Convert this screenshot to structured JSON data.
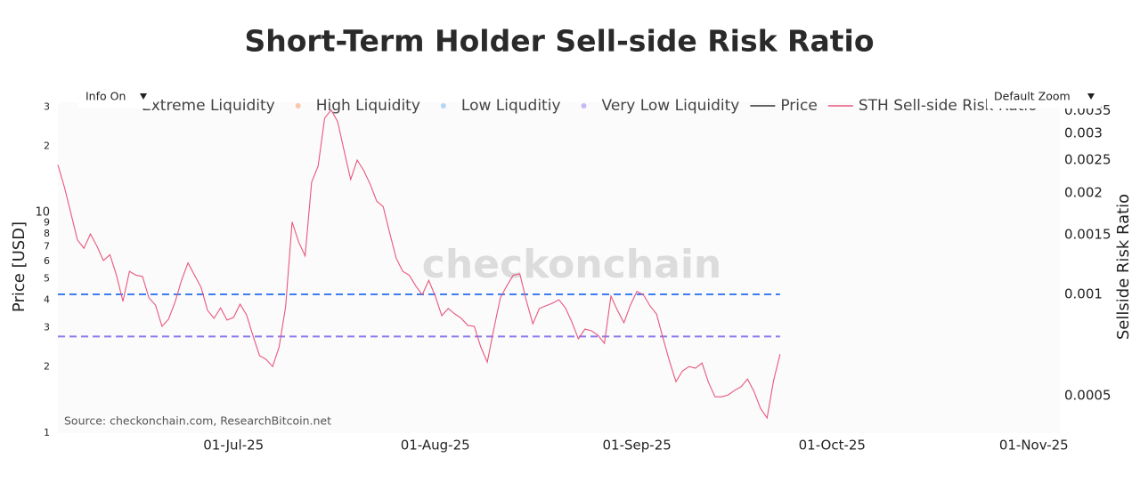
{
  "chart_data": {
    "type": "line",
    "title": "Short-Term Holder Sell-side Risk Ratio",
    "y_label": "Price [USD]",
    "y2_label": "Sellside Risk Ratio",
    "watermark": "checkonchain",
    "source": "Source: checkonchain.com, ResearchBitcoin.net",
    "controls": {
      "info": "Info On",
      "zoom": "Default Zoom"
    },
    "ylog": true,
    "y2log": true,
    "grid": false,
    "xlim": [
      "2025-06-04",
      "2025-11-05"
    ],
    "xticks": [
      {
        "value": "2025-07-01",
        "label": "01-Jul-25"
      },
      {
        "value": "2025-08-01",
        "label": "01-Aug-25"
      },
      {
        "value": "2025-09-01",
        "label": "01-Sep-25"
      },
      {
        "value": "2025-10-01",
        "label": "01-Oct-25"
      },
      {
        "value": "2025-11-01",
        "label": "01-Nov-25"
      }
    ],
    "ylim": [
      1,
      31.6
    ],
    "yticks": [
      1,
      2,
      3,
      4,
      5,
      6,
      7,
      8,
      9,
      10,
      {
        "value": 20,
        "label": "2"
      },
      {
        "value": 30,
        "label": "3"
      }
    ],
    "y2lim": [
      0.000388,
      0.00371
    ],
    "y2ticks": [
      0.0005,
      0.001,
      0.0015,
      0.002,
      0.0025,
      0.003,
      0.0035
    ],
    "legend": [
      {
        "name": "Extreme Liquidity",
        "color": "#f4a08c",
        "symbol": "dot"
      },
      {
        "name": "High Liquidity",
        "color": "#f9c8a9",
        "symbol": "dot"
      },
      {
        "name": "Low Liquditiy",
        "color": "#b7d4f7",
        "symbol": "dot"
      },
      {
        "name": "Very Low Liquidity",
        "color": "#c8b9f2",
        "symbol": "dot"
      },
      {
        "name": "Price",
        "color": "#333333",
        "symbol": "line"
      }
    ],
    "levels": [
      {
        "value": 0.001,
        "color": "#3d7df2"
      },
      {
        "value": 0.00075,
        "color": "#8c78f0"
      }
    ],
    "x": [
      "2025-06-04",
      "2025-06-05",
      "2025-06-06",
      "2025-06-07",
      "2025-06-08",
      "2025-06-09",
      "2025-06-10",
      "2025-06-11",
      "2025-06-12",
      "2025-06-13",
      "2025-06-14",
      "2025-06-15",
      "2025-06-16",
      "2025-06-17",
      "2025-06-18",
      "2025-06-19",
      "2025-06-20",
      "2025-06-21",
      "2025-06-22",
      "2025-06-23",
      "2025-06-24",
      "2025-06-25",
      "2025-06-26",
      "2025-06-27",
      "2025-06-28",
      "2025-06-29",
      "2025-06-30",
      "2025-07-01",
      "2025-07-02",
      "2025-07-03",
      "2025-07-04",
      "2025-07-05",
      "2025-07-06",
      "2025-07-07",
      "2025-07-08",
      "2025-07-09",
      "2025-07-10",
      "2025-07-11",
      "2025-07-12",
      "2025-07-13",
      "2025-07-14",
      "2025-07-15",
      "2025-07-16",
      "2025-07-17",
      "2025-07-18",
      "2025-07-19",
      "2025-07-20",
      "2025-07-21",
      "2025-07-22",
      "2025-07-23",
      "2025-07-24",
      "2025-07-25",
      "2025-07-26",
      "2025-07-27",
      "2025-07-28",
      "2025-07-29",
      "2025-07-30",
      "2025-07-31",
      "2025-08-01",
      "2025-08-02",
      "2025-08-03",
      "2025-08-04",
      "2025-08-05",
      "2025-08-06",
      "2025-08-07",
      "2025-08-08",
      "2025-08-09",
      "2025-08-10",
      "2025-08-11",
      "2025-08-12",
      "2025-08-13",
      "2025-08-14",
      "2025-08-15",
      "2025-08-16",
      "2025-08-17",
      "2025-08-18",
      "2025-08-19",
      "2025-08-20",
      "2025-08-21",
      "2025-08-22",
      "2025-08-23",
      "2025-08-24",
      "2025-08-25",
      "2025-08-26",
      "2025-08-27",
      "2025-08-28",
      "2025-08-29",
      "2025-08-30",
      "2025-08-31",
      "2025-09-01",
      "2025-09-02",
      "2025-09-03",
      "2025-09-04",
      "2025-09-05",
      "2025-09-06",
      "2025-09-07",
      "2025-09-08",
      "2025-09-09",
      "2025-09-10",
      "2025-09-11",
      "2025-09-12",
      "2025-09-13",
      "2025-09-14",
      "2025-09-15",
      "2025-09-16",
      "2025-09-17",
      "2025-09-18",
      "2025-09-19",
      "2025-09-20",
      "2025-09-21",
      "2025-09-22",
      "2025-09-23"
    ],
    "series": [
      {
        "name": "STH Sell-side Risk Ratio",
        "color": "#e8577d",
        "axis": "y2",
        "values": [
          0.00242,
          0.00208,
          0.00174,
          0.00145,
          0.00137,
          0.00151,
          0.00139,
          0.00126,
          0.00131,
          0.00114,
          0.000953,
          0.00117,
          0.00114,
          0.00113,
          0.000976,
          0.00093,
          0.000804,
          0.000844,
          0.000947,
          0.0011,
          0.00124,
          0.00114,
          0.00105,
          0.000897,
          0.000849,
          0.000912,
          0.000839,
          0.000854,
          0.000935,
          0.000869,
          0.000752,
          0.000658,
          0.000642,
          0.000611,
          0.000698,
          0.000918,
          0.00164,
          0.00143,
          0.0013,
          0.00215,
          0.0024,
          0.00333,
          0.00352,
          0.00325,
          0.00266,
          0.00219,
          0.0025,
          0.00233,
          0.00212,
          0.00189,
          0.00182,
          0.00152,
          0.00128,
          0.00117,
          0.00114,
          0.00106,
          0.000997,
          0.0011,
          0.000988,
          0.000865,
          0.000908,
          0.000875,
          0.000849,
          0.000809,
          0.000804,
          0.000698,
          0.00063,
          0.000789,
          0.000976,
          0.00106,
          0.00114,
          0.00115,
          0.000958,
          0.000818,
          0.000908,
          0.000925,
          0.000941,
          0.000964,
          0.000912,
          0.000828,
          0.000738,
          0.000789,
          0.00078,
          0.000757,
          0.000716,
          0.000988,
          0.000897,
          0.000824,
          0.00093,
          0.00102,
          0.000997,
          0.000925,
          0.000875,
          0.000743,
          0.000634,
          0.000551,
          0.000593,
          0.000611,
          0.000604,
          0.000626,
          0.000548,
          0.000497,
          0.000497,
          0.000503,
          0.000519,
          0.000532,
          0.000561,
          0.000515,
          0.000459,
          0.00043,
          0.000555,
          0.000665
        ]
      }
    ]
  }
}
